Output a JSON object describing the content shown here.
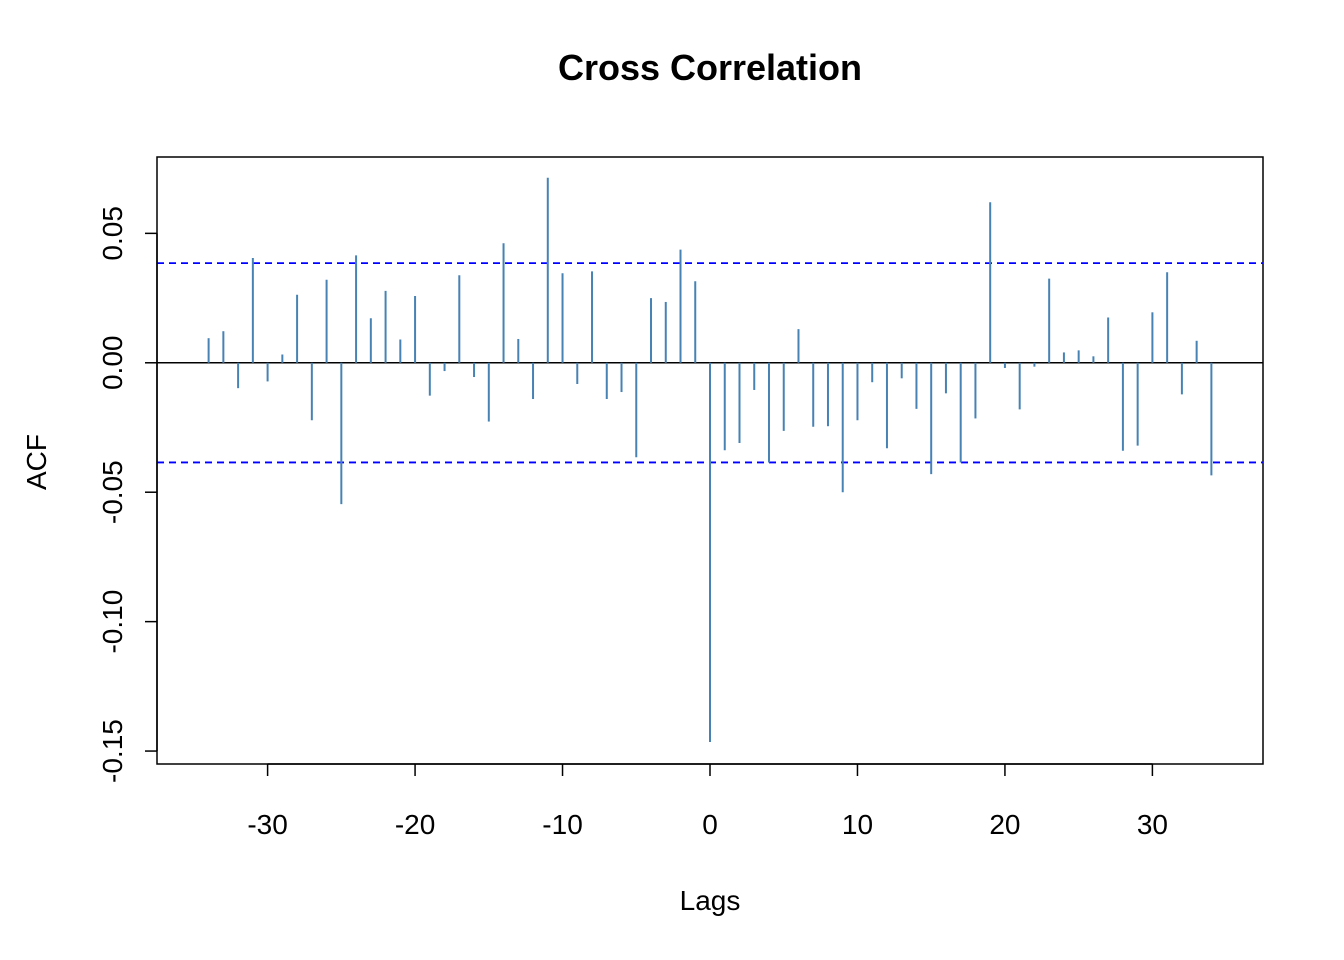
{
  "chart_data": {
    "type": "bar",
    "title": "Cross Correlation",
    "xlabel": "Lags",
    "ylabel": "ACF",
    "xlim": [
      -37.5,
      37.5
    ],
    "ylim": [
      -0.155,
      0.0795
    ],
    "x_ticks": [
      -30,
      -20,
      -10,
      0,
      10,
      20,
      30
    ],
    "y_ticks": [
      -0.15,
      -0.1,
      -0.05,
      0.0,
      0.05
    ],
    "y_tick_labels": [
      "-0.15",
      "-0.10",
      "-0.05",
      "0.00",
      "0.05"
    ],
    "x_tick_labels": [
      "-30",
      "-20",
      "-10",
      "0",
      "10",
      "20",
      "30"
    ],
    "confidence_limit": 0.0385,
    "grid": false,
    "colors": {
      "bars": "#4682b4",
      "confidence": "#0000ff",
      "zero_line": "#000000",
      "frame": "#000000"
    },
    "x": [
      -34,
      -33,
      -32,
      -31,
      -30,
      -29,
      -28,
      -27,
      -26,
      -25,
      -24,
      -23,
      -22,
      -21,
      -20,
      -19,
      -18,
      -17,
      -16,
      -15,
      -14,
      -13,
      -12,
      -11,
      -10,
      -9,
      -8,
      -7,
      -6,
      -5,
      -4,
      -3,
      -2,
      -1,
      0,
      1,
      2,
      3,
      4,
      5,
      6,
      7,
      8,
      9,
      10,
      11,
      12,
      13,
      14,
      15,
      16,
      17,
      18,
      19,
      20,
      21,
      22,
      23,
      24,
      25,
      26,
      27,
      28,
      29,
      30,
      31,
      32,
      33,
      34
    ],
    "values": [
      0.0095,
      0.0122,
      -0.0098,
      0.0405,
      -0.0072,
      0.0032,
      0.0263,
      -0.0222,
      0.0321,
      -0.0546,
      0.0415,
      0.0172,
      0.0278,
      0.009,
      0.0258,
      -0.0127,
      -0.0032,
      0.0338,
      -0.0055,
      -0.0227,
      0.0462,
      0.0092,
      -0.014,
      0.0715,
      0.0346,
      -0.0082,
      0.0353,
      -0.014,
      -0.0113,
      -0.0365,
      0.025,
      0.0235,
      0.0437,
      0.0315,
      -0.1465,
      -0.0338,
      -0.031,
      -0.0105,
      -0.0385,
      -0.0263,
      0.013,
      -0.0247,
      -0.0245,
      -0.05,
      -0.0222,
      -0.0075,
      -0.033,
      -0.006,
      -0.0178,
      -0.043,
      -0.0118,
      -0.0385,
      -0.0215,
      0.062,
      -0.002,
      -0.018,
      -0.0015,
      0.0325,
      0.004,
      0.0048,
      0.0025,
      0.0175,
      -0.034,
      -0.032,
      0.0195,
      0.035,
      -0.0122,
      0.0085,
      -0.0435
    ]
  }
}
